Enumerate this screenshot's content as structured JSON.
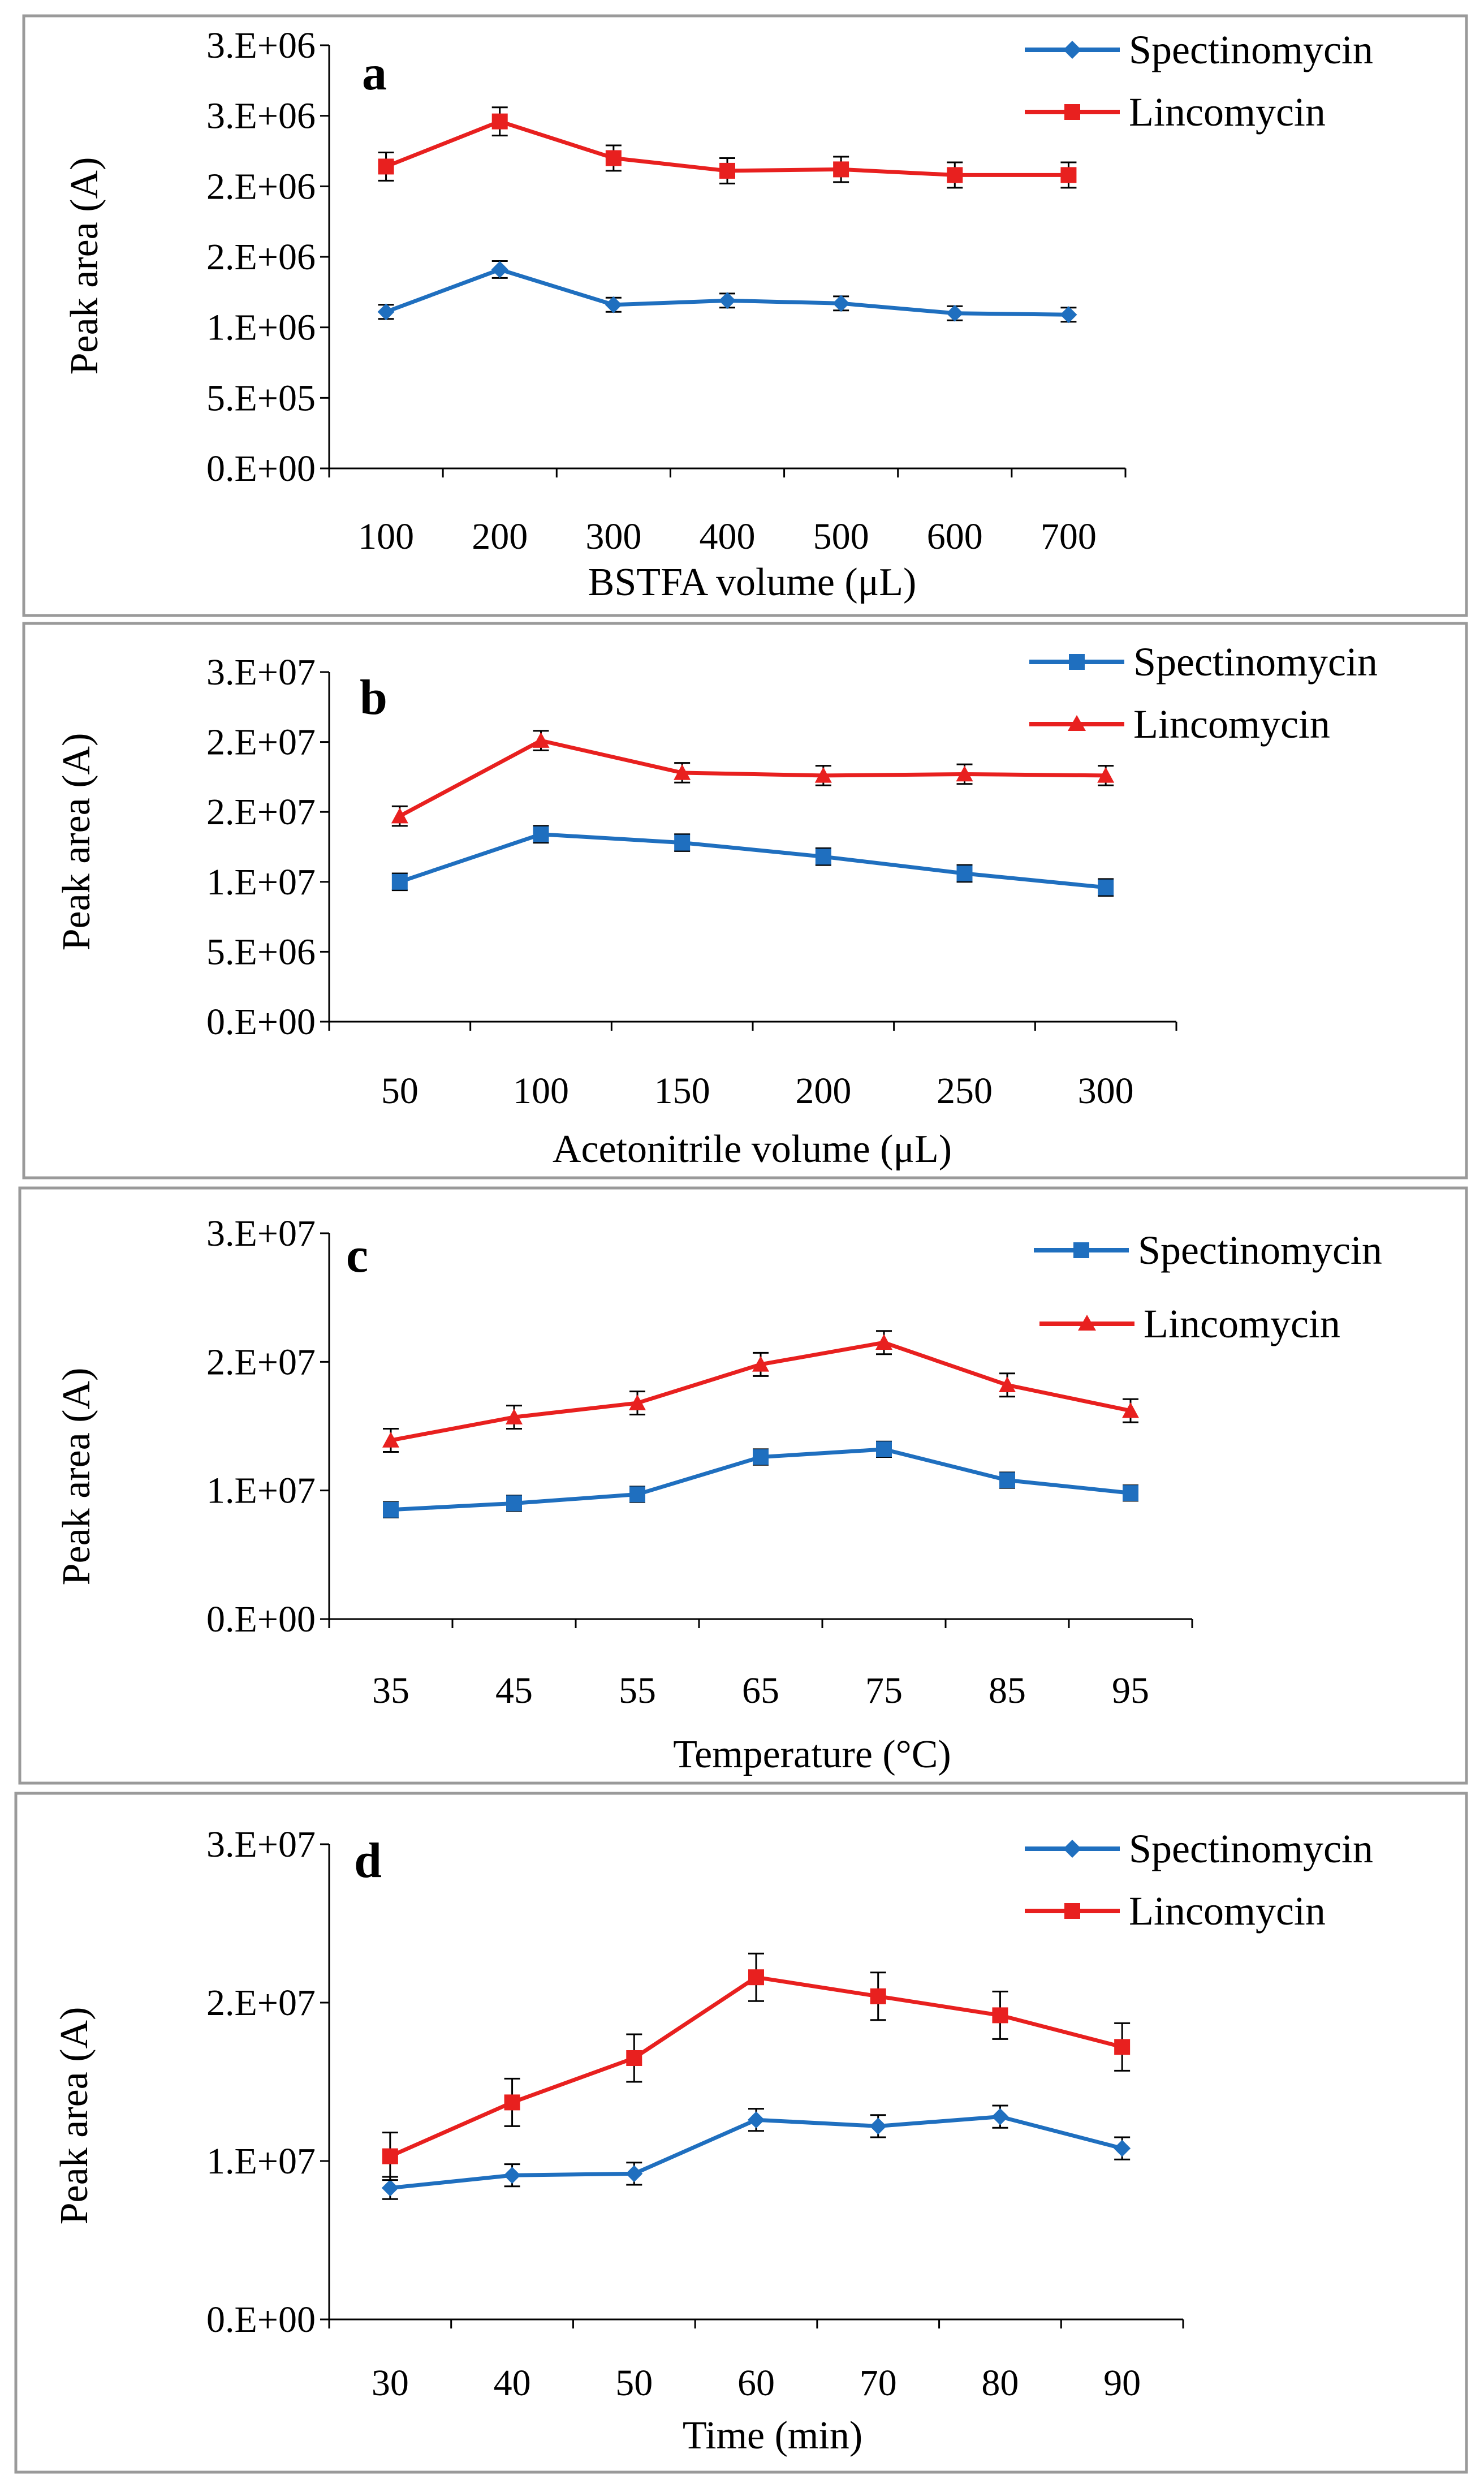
{
  "figure": {
    "panel_count": 4
  },
  "chart_data": [
    {
      "type": "line",
      "panel_label": "a",
      "title": "",
      "xlabel": "BSTFA volume (μL)",
      "ylabel": "Peak area (A)",
      "categories": [
        "100",
        "200",
        "300",
        "400",
        "500",
        "600",
        "700"
      ],
      "ylim": [
        0,
        3000000
      ],
      "yticks": [
        0,
        500000,
        1000000,
        1500000,
        2000000,
        2500000,
        3000000
      ],
      "ytick_labels": [
        "0.E+00",
        "5.E+05",
        "1.E+06",
        "2.E+06",
        "2.E+06",
        "3.E+06",
        "3.E+06"
      ],
      "legend_position": "top-right",
      "series": [
        {
          "name": "Spectinomycin",
          "marker": "diamond",
          "color": "#1f6fbf",
          "values": [
            1110000,
            1410000,
            1160000,
            1190000,
            1170000,
            1100000,
            1090000
          ],
          "errors": [
            50000,
            60000,
            50000,
            50000,
            50000,
            50000,
            50000
          ]
        },
        {
          "name": "Lincomycin",
          "marker": "square",
          "color": "#e8201f",
          "values": [
            2140000,
            2460000,
            2200000,
            2110000,
            2120000,
            2080000,
            2080000
          ],
          "errors": [
            100000,
            100000,
            90000,
            90000,
            90000,
            90000,
            90000
          ]
        }
      ]
    },
    {
      "type": "line",
      "panel_label": "b",
      "title": "",
      "xlabel": "Acetonitrile volume (μL)",
      "ylabel": "Peak area (A)",
      "categories": [
        "50",
        "100",
        "150",
        "200",
        "250",
        "300"
      ],
      "ylim": [
        0,
        25000000
      ],
      "yticks": [
        0,
        5000000,
        10000000,
        15000000,
        20000000,
        25000000
      ],
      "ytick_labels": [
        "0.E+00",
        "5.E+06",
        "1.E+07",
        "2.E+07",
        "2.E+07",
        "3.E+07"
      ],
      "legend_position": "top-right",
      "series": [
        {
          "name": "Spectinomycin",
          "marker": "square",
          "color": "#1f6fbf",
          "values": [
            10000000,
            13400000,
            12800000,
            11800000,
            10600000,
            9600000
          ],
          "errors": [
            600000,
            600000,
            600000,
            600000,
            600000,
            600000
          ]
        },
        {
          "name": "Lincomycin",
          "marker": "triangle",
          "color": "#e8201f",
          "values": [
            14700000,
            20100000,
            17800000,
            17600000,
            17700000,
            17600000
          ],
          "errors": [
            700000,
            700000,
            700000,
            700000,
            700000,
            700000
          ]
        }
      ]
    },
    {
      "type": "line",
      "panel_label": "c",
      "title": "",
      "xlabel": "Temperature (°C)",
      "ylabel": "Peak area (A)",
      "categories": [
        "35",
        "45",
        "55",
        "65",
        "75",
        "85",
        "95"
      ],
      "ylim": [
        0,
        30000000
      ],
      "yticks": [
        0,
        10000000,
        20000000,
        30000000
      ],
      "ytick_labels": [
        "0.E+00",
        "1.E+07",
        "2.E+07",
        "3.E+07"
      ],
      "legend_position": "top-right",
      "series": [
        {
          "name": "Spectinomycin",
          "marker": "square",
          "color": "#1f6fbf",
          "values": [
            8500000,
            9000000,
            9700000,
            12600000,
            13200000,
            10800000,
            9800000
          ],
          "errors": [
            600000,
            600000,
            600000,
            600000,
            600000,
            600000,
            600000
          ]
        },
        {
          "name": "Lincomycin",
          "marker": "triangle",
          "color": "#e8201f",
          "values": [
            13900000,
            15700000,
            16800000,
            19800000,
            21500000,
            18200000,
            16200000
          ],
          "errors": [
            900000,
            900000,
            900000,
            900000,
            900000,
            900000,
            900000
          ]
        }
      ]
    },
    {
      "type": "line",
      "panel_label": "d",
      "title": "",
      "xlabel": "Time (min)",
      "ylabel": "Peak area (A)",
      "categories": [
        "30",
        "40",
        "50",
        "60",
        "70",
        "80",
        "90"
      ],
      "ylim": [
        0,
        30000000
      ],
      "yticks": [
        0,
        10000000,
        20000000,
        30000000
      ],
      "ytick_labels": [
        "0.E+00",
        "1.E+07",
        "2.E+07",
        "3.E+07"
      ],
      "legend_position": "top-right",
      "series": [
        {
          "name": "Spectinomycin",
          "marker": "diamond",
          "color": "#1f6fbf",
          "values": [
            8300000,
            9100000,
            9200000,
            12600000,
            12200000,
            12800000,
            10800000
          ],
          "errors": [
            700000,
            700000,
            700000,
            700000,
            700000,
            700000,
            700000
          ]
        },
        {
          "name": "Lincomycin",
          "marker": "square",
          "color": "#e8201f",
          "values": [
            10300000,
            13700000,
            16500000,
            21600000,
            20400000,
            19200000,
            17200000
          ],
          "errors": [
            1500000,
            1500000,
            1500000,
            1500000,
            1500000,
            1500000,
            1500000
          ]
        }
      ]
    }
  ]
}
